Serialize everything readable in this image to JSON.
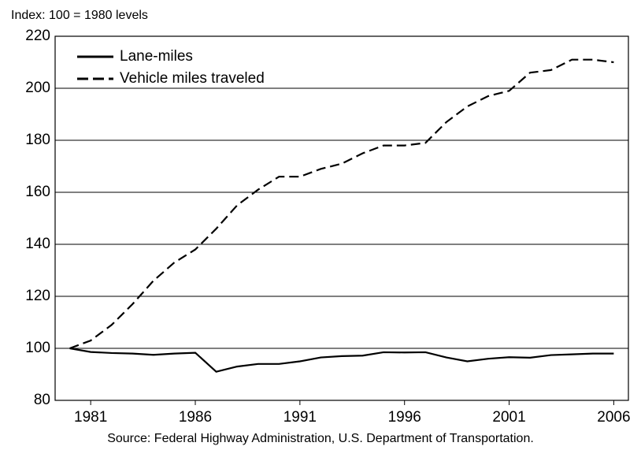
{
  "chart_data": {
    "type": "line",
    "subtitle": "Index: 100 = 1980 levels",
    "source": "Source: Federal Highway Administration, U.S. Department of Transportation.",
    "x": [
      1980,
      1981,
      1982,
      1983,
      1984,
      1985,
      1986,
      1987,
      1988,
      1989,
      1990,
      1991,
      1992,
      1993,
      1994,
      1995,
      1996,
      1997,
      1998,
      1999,
      2000,
      2001,
      2002,
      2003,
      2004,
      2005,
      2006
    ],
    "series": [
      {
        "name": "Lane-miles",
        "color": "#000000",
        "style": "solid",
        "values": [
          100,
          98.6,
          98.2,
          98,
          97.5,
          98,
          98.3,
          91,
          93,
          94,
          94,
          95,
          96.5,
          97,
          97.2,
          98.5,
          98.4,
          98.5,
          96.5,
          95,
          96,
          96.6,
          96.4,
          97.4,
          97.7,
          98,
          98
        ]
      },
      {
        "name": "Vehicle miles traveled",
        "color": "#000000",
        "style": "dashed",
        "values": [
          100,
          103,
          109,
          117,
          126,
          133,
          138,
          146,
          155,
          161,
          166,
          166,
          169,
          171,
          175,
          178,
          178,
          179,
          187,
          193,
          197,
          199,
          206,
          207,
          211,
          211,
          210
        ]
      }
    ],
    "xlim": [
      1979.3,
      2006.7
    ],
    "xticks": [
      1981,
      1986,
      1991,
      1996,
      2001,
      2006
    ],
    "ylim": [
      80,
      220
    ],
    "yticks": [
      80,
      100,
      120,
      140,
      160,
      180,
      200,
      220
    ],
    "grid": true,
    "legend": "upper left"
  }
}
